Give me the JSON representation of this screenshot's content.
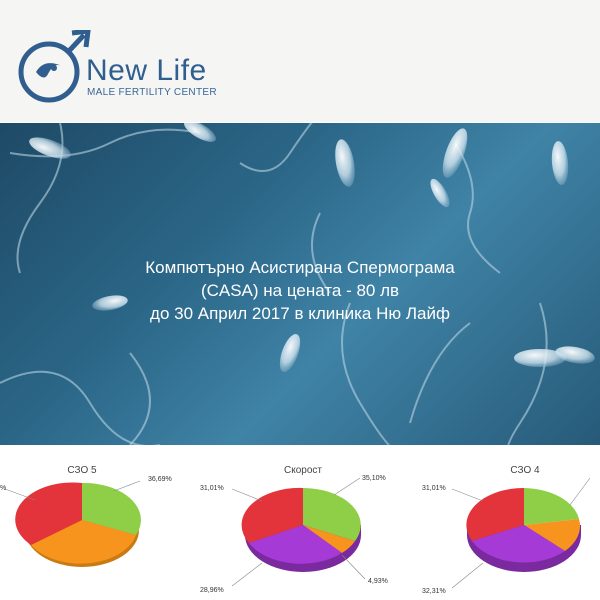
{
  "header": {
    "logo_name": "New Life",
    "logo_tagline": "MALE FERTILITY CENTER"
  },
  "banner": {
    "line1": "Компютърно Асистирана Спермограма",
    "line2": "(CASA) на цената  - 80 лв",
    "line3": "до 30 Април 2017 в клиника Ню Лайф"
  },
  "colors": {
    "brand_blue": "#2f5e8f",
    "red": "#e3343b",
    "green": "#8fcf47",
    "orange": "#f7941d",
    "purple": "#a53ad6"
  },
  "chart_data": [
    {
      "type": "pie",
      "title": "СЗО 5",
      "labels": [
        "36,69%",
        "%"
      ],
      "slices": [
        {
          "color": "green",
          "value": 36.69
        },
        {
          "color": "orange"
        },
        {
          "color": "red"
        }
      ]
    },
    {
      "type": "pie",
      "title": "Скорост",
      "labels": [
        "35,10%",
        "31,01%",
        "28,96%",
        "4,93%"
      ],
      "slices": [
        {
          "color": "green",
          "value": 35.1
        },
        {
          "color": "orange",
          "value": 4.93
        },
        {
          "color": "purple",
          "value": 28.96
        },
        {
          "color": "red",
          "value": 31.01
        }
      ]
    },
    {
      "type": "pie",
      "title": "СЗО 4",
      "labels": [
        "31,01%",
        "32,31%"
      ],
      "slices": [
        {
          "color": "green"
        },
        {
          "color": "orange"
        },
        {
          "color": "purple",
          "value": 32.31
        },
        {
          "color": "red",
          "value": 31.01
        }
      ]
    }
  ]
}
